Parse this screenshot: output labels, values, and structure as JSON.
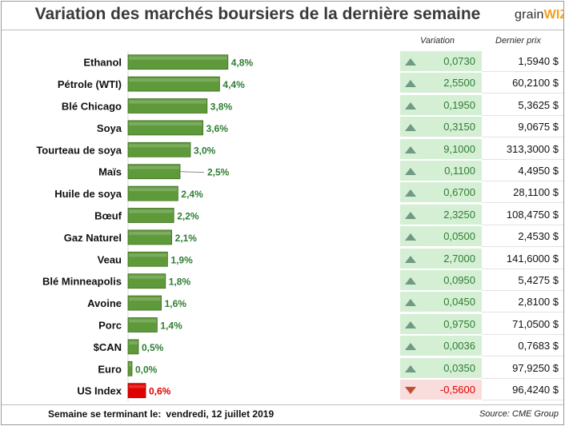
{
  "header": {
    "title": "Variation des marchés boursiers de la dernière semaine",
    "logo_text_main": "grain",
    "logo_text_accent": "WIZ"
  },
  "table_headers": {
    "variation": "Variation",
    "price": "Dernier prix"
  },
  "footer": {
    "week_label": "Semaine se terminant le:",
    "week_date": "vendredi, 12 juillet 2019",
    "source": "Source: CME Group"
  },
  "colors": {
    "bar_positive": "#5f9a3a",
    "bar_negative": "#e00000",
    "label_positive": "#2e7d32",
    "label_negative": "#e00000",
    "variation_bg_up": "#d4efd4",
    "variation_bg_down": "#f9dcdc",
    "arrow_up": "#6f9a86",
    "arrow_down": "#c0502e"
  },
  "chart_data": {
    "type": "bar",
    "orientation": "horizontal",
    "categories": [
      "Ethanol",
      "Pétrole (WTI)",
      "Blé Chicago",
      "Soya",
      "Tourteau de soya",
      "Maïs",
      "Huile de soya",
      "Bœuf",
      "Gaz Naturel",
      "Veau",
      "Blé Minneapolis",
      "Avoine",
      "Porc",
      "$CAN",
      "Euro",
      "US Index"
    ],
    "values": [
      4.8,
      4.4,
      3.8,
      3.6,
      3.0,
      2.5,
      2.4,
      2.2,
      2.1,
      1.9,
      1.8,
      1.6,
      1.4,
      0.5,
      0.0,
      -0.6
    ],
    "value_labels": [
      "4,8%",
      "4,4%",
      "3,8%",
      "3,6%",
      "3,0%",
      "2,5%",
      "2,4%",
      "2,2%",
      "2,1%",
      "1,9%",
      "1,8%",
      "1,6%",
      "1,4%",
      "0,5%",
      "0,0%",
      "0,6%"
    ],
    "variation": [
      "0,0730",
      "2,5500",
      "0,1950",
      "0,3150",
      "9,1000",
      "0,1100",
      "0,6700",
      "2,3250",
      "0,0500",
      "2,7000",
      "0,0950",
      "0,0450",
      "0,9750",
      "0,0036",
      "0,0350",
      "-0,5600"
    ],
    "direction": [
      "up",
      "up",
      "up",
      "up",
      "up",
      "up",
      "up",
      "up",
      "up",
      "up",
      "up",
      "up",
      "up",
      "up",
      "up",
      "down"
    ],
    "last_price": [
      "1,5940 $",
      "60,2100 $",
      "5,3625 $",
      "9,0675 $",
      "313,3000 $",
      "4,4950 $",
      "28,1100 $",
      "108,4750 $",
      "2,4530 $",
      "141,6000 $",
      "5,4275 $",
      "2,8100 $",
      "71,0500 $",
      "0,7683 $",
      "97,9250 $",
      "96,4240 $"
    ],
    "title": "Variation des marchés boursiers de la dernière semaine",
    "xlabel": "",
    "ylabel": "",
    "grid": false,
    "legend": "none"
  }
}
